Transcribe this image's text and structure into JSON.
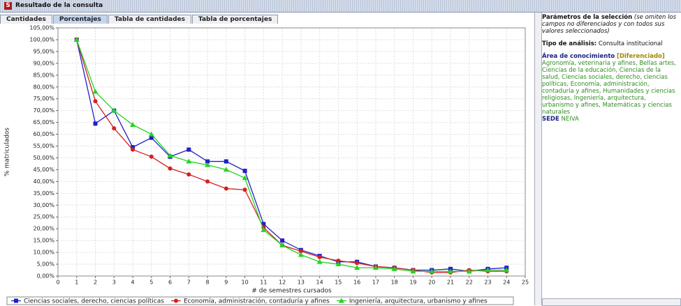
{
  "window": {
    "title": "Resultado de la consulta"
  },
  "tabs": [
    "Cantidades",
    "Porcentajes",
    "Tabla de cantidades",
    "Tabla de porcentajes"
  ],
  "active_tab": 1,
  "panel": {
    "heading": "Parámetros de la selección",
    "heading_note": "(se omiten los campos no diferenciados y con todos sus valores seleccionados)",
    "analysis_label": "Tipo de análisis:",
    "analysis_value": "Consulta institucional",
    "area_label": "Área de conocimiento",
    "area_status": "[Diferenciado]",
    "area_values": "Agronomía, veterinaria y afines, Bellas artes, Ciencias de la educación, Ciencias de la salud, Ciencias sociales, derecho, ciencias políticas, Economía, administración, contaduría y afines, Humanidades y ciencias religiosas, Ingeniería, arquitectura, urbanismo y afines, Matemáticas y ciencias naturales",
    "sede_label": "SEDE",
    "sede_value": "NEIVA"
  },
  "chart_data": {
    "type": "line",
    "x_label": "# de semestres cursados",
    "y_label": "% matriculados",
    "x": [
      1,
      2,
      3,
      4,
      5,
      6,
      7,
      8,
      9,
      10,
      11,
      12,
      13,
      14,
      15,
      16,
      17,
      18,
      19,
      20,
      21,
      22,
      23,
      24
    ],
    "series": [
      {
        "name": "Ciencias sociales, derecho, ciencias políticas",
        "color": "#1f1fc8",
        "marker": "square",
        "values": [
          100,
          64.5,
          70,
          54.5,
          58.5,
          50.5,
          53.5,
          48.5,
          48.5,
          44.5,
          22,
          15,
          11,
          8.5,
          6,
          6,
          4,
          3.5,
          2.5,
          2.5,
          3,
          2,
          3,
          3.5
        ]
      },
      {
        "name": "Economía, administración, contaduría y afines",
        "color": "#d42020",
        "marker": "circle",
        "values": [
          100,
          74,
          62.5,
          53.5,
          50.5,
          45.5,
          43,
          40,
          37,
          36.5,
          20.5,
          13,
          10.5,
          8,
          6.5,
          5.5,
          4,
          3.5,
          2.5,
          1.5,
          1.5,
          2.5,
          2,
          2
        ]
      },
      {
        "name": "Ingeniería, arquitectura, urbanismo y afines",
        "color": "#22d422",
        "marker": "triangle",
        "values": [
          100,
          78,
          70,
          64,
          60,
          51,
          48.5,
          47,
          45,
          41.5,
          19.5,
          13,
          9,
          6,
          5,
          3.5,
          3.5,
          3,
          2,
          2,
          2,
          2,
          2.5,
          2.5
        ]
      }
    ],
    "xlim": [
      0,
      25
    ],
    "xticks": [
      0,
      1,
      2,
      3,
      4,
      5,
      6,
      7,
      8,
      9,
      10,
      11,
      12,
      13,
      14,
      15,
      16,
      17,
      18,
      19,
      20,
      21,
      22,
      23,
      24,
      25
    ],
    "ylim": [
      0,
      105
    ],
    "yticks": [
      {
        "value": 0,
        "label": "0,00%"
      },
      {
        "value": 5,
        "label": "5,00%"
      },
      {
        "value": 10,
        "label": "10,00%"
      },
      {
        "value": 15,
        "label": "15,00%"
      },
      {
        "value": 20,
        "label": "20,00%"
      },
      {
        "value": 25,
        "label": "25,00%"
      },
      {
        "value": 30,
        "label": "30,00%"
      },
      {
        "value": 35,
        "label": "35,00%"
      },
      {
        "value": 40,
        "label": "40,00%"
      },
      {
        "value": 45,
        "label": "45,00%"
      },
      {
        "value": 50,
        "label": "50,00%"
      },
      {
        "value": 55,
        "label": "55,00%"
      },
      {
        "value": 60,
        "label": "60,00%"
      },
      {
        "value": 65,
        "label": "65,00%"
      },
      {
        "value": 70,
        "label": "70,00%"
      },
      {
        "value": 75,
        "label": "75,00%"
      },
      {
        "value": 80,
        "label": "80,00%"
      },
      {
        "value": 85,
        "label": "85,00%"
      },
      {
        "value": 90,
        "label": "90,00%"
      },
      {
        "value": 95,
        "label": "95,00%"
      },
      {
        "value": 100,
        "label": "100,00%"
      },
      {
        "value": 105,
        "label": "105,00%"
      }
    ],
    "grid": true
  }
}
